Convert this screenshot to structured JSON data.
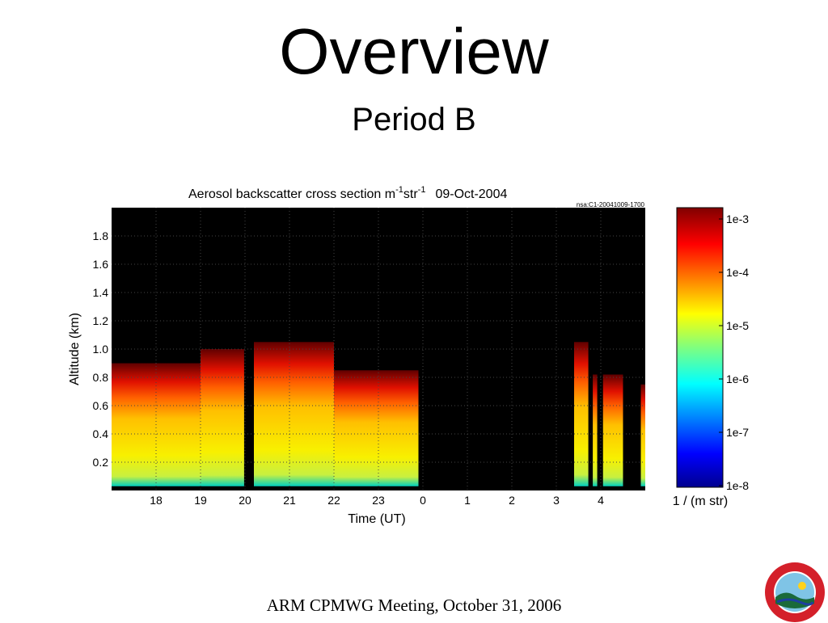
{
  "slide": {
    "title": "Overview",
    "subtitle": "Period B",
    "footer": "ARM CPMWG Meeting, October 31, 2006"
  },
  "logo": {
    "description_text": "UNIVERSITY OF WISCONSIN MADISON"
  },
  "chart_data": {
    "type": "heatmap",
    "title": "Aerosol backscatter cross section m-1str-1 09-Oct-2004",
    "title_parts": {
      "main": "Aerosol backscatter cross section m",
      "exp1": "-1",
      "str": "str",
      "exp2": "-1",
      "date": "09-Oct-2004"
    },
    "file_label": "nsa:C1-20041009-1700",
    "xlabel": "Time (UT)",
    "ylabel": "Altitude (km)",
    "x_ticks": [
      "18",
      "19",
      "20",
      "21",
      "22",
      "23",
      "0",
      "1",
      "2",
      "3",
      "4"
    ],
    "y_ticks": [
      "0.2",
      "0.4",
      "0.6",
      "0.8",
      "1.0",
      "1.2",
      "1.4",
      "1.6",
      "1.8"
    ],
    "ylim": [
      0,
      2.0
    ],
    "xlim_hours": [
      17,
      29
    ],
    "grid": true,
    "colorbar": {
      "label": "1 / (m str)",
      "scale": "log",
      "ticks": [
        "1e-3",
        "1e-4",
        "1e-5",
        "1e-6",
        "1e-7",
        "1e-8"
      ],
      "colormap": "jet"
    },
    "segments": [
      {
        "start": 17.0,
        "end": 19.0,
        "top_km": 0.9
      },
      {
        "start": 19.0,
        "end": 19.98,
        "top_km": 1.0
      },
      {
        "start": 20.2,
        "end": 22.0,
        "top_km": 1.05
      },
      {
        "start": 22.0,
        "end": 23.9,
        "top_km": 0.85
      },
      {
        "start": 27.4,
        "end": 27.72,
        "top_km": 1.05
      },
      {
        "start": 27.82,
        "end": 27.92,
        "top_km": 0.82
      },
      {
        "start": 28.05,
        "end": 28.5,
        "top_km": 0.82
      },
      {
        "start": 28.9,
        "end": 29.0,
        "top_km": 0.75
      }
    ]
  }
}
